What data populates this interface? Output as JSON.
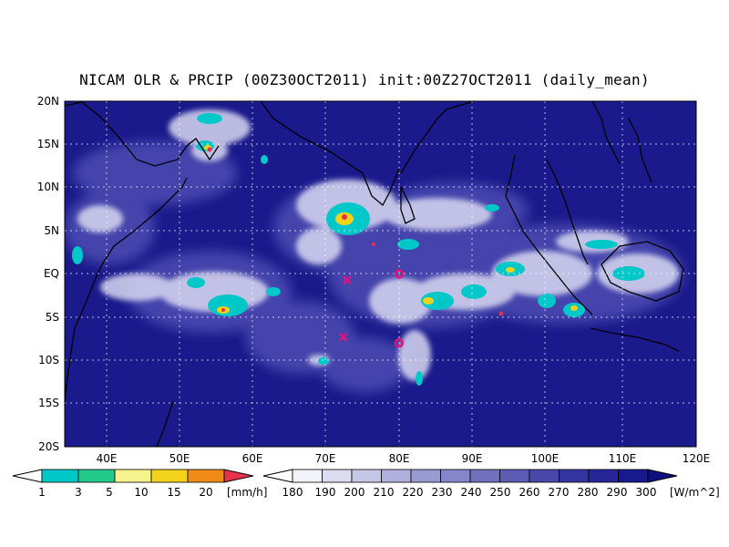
{
  "title": "NICAM OLR & PRCIP (00Z30OCT2011) init:00Z27OCT2011 (daily_mean)",
  "map": {
    "lon_range": [
      35,
      120
    ],
    "lat_range": [
      -20,
      20
    ],
    "lon_ticks": [
      "40E",
      "50E",
      "60E",
      "70E",
      "80E",
      "90E",
      "100E",
      "110E",
      "120E"
    ],
    "lat_ticks": [
      "20N",
      "15N",
      "10N",
      "5N",
      "EQ",
      "5S",
      "10S",
      "15S",
      "20S"
    ],
    "gridlines": true,
    "markers": [
      {
        "type": "x",
        "lon": 73,
        "lat": -0.7,
        "color": "#e0137d"
      },
      {
        "type": "x",
        "lon": 72.5,
        "lat": -7.3,
        "color": "#e0137d"
      },
      {
        "type": "o",
        "lon": 80,
        "lat": 0,
        "color": "#e0137d"
      },
      {
        "type": "o",
        "lon": 80,
        "lat": -8,
        "color": "#e0137d"
      }
    ]
  },
  "precip_legend": {
    "labels": [
      "1",
      "3",
      "5",
      "10",
      "15",
      "20"
    ],
    "unit": "[mm/h]",
    "colors": [
      "#00c8c8",
      "#22c98a",
      "#f6f28e",
      "#f2d21a",
      "#f08a18",
      "#e8304c"
    ]
  },
  "olr_legend": {
    "labels": [
      "180",
      "190",
      "200",
      "210",
      "220",
      "230",
      "240",
      "250",
      "260",
      "270",
      "280",
      "290",
      "300"
    ],
    "unit": "[W/m^2]",
    "colors": [
      "#f2f2fb",
      "#dcdcf0",
      "#c6c6e7",
      "#b0b0dd",
      "#9a9ad3",
      "#8585c9",
      "#7070bf",
      "#5c5cb5",
      "#4848ab",
      "#3535a1",
      "#262698",
      "#19198e",
      "#0f0f7f"
    ]
  }
}
